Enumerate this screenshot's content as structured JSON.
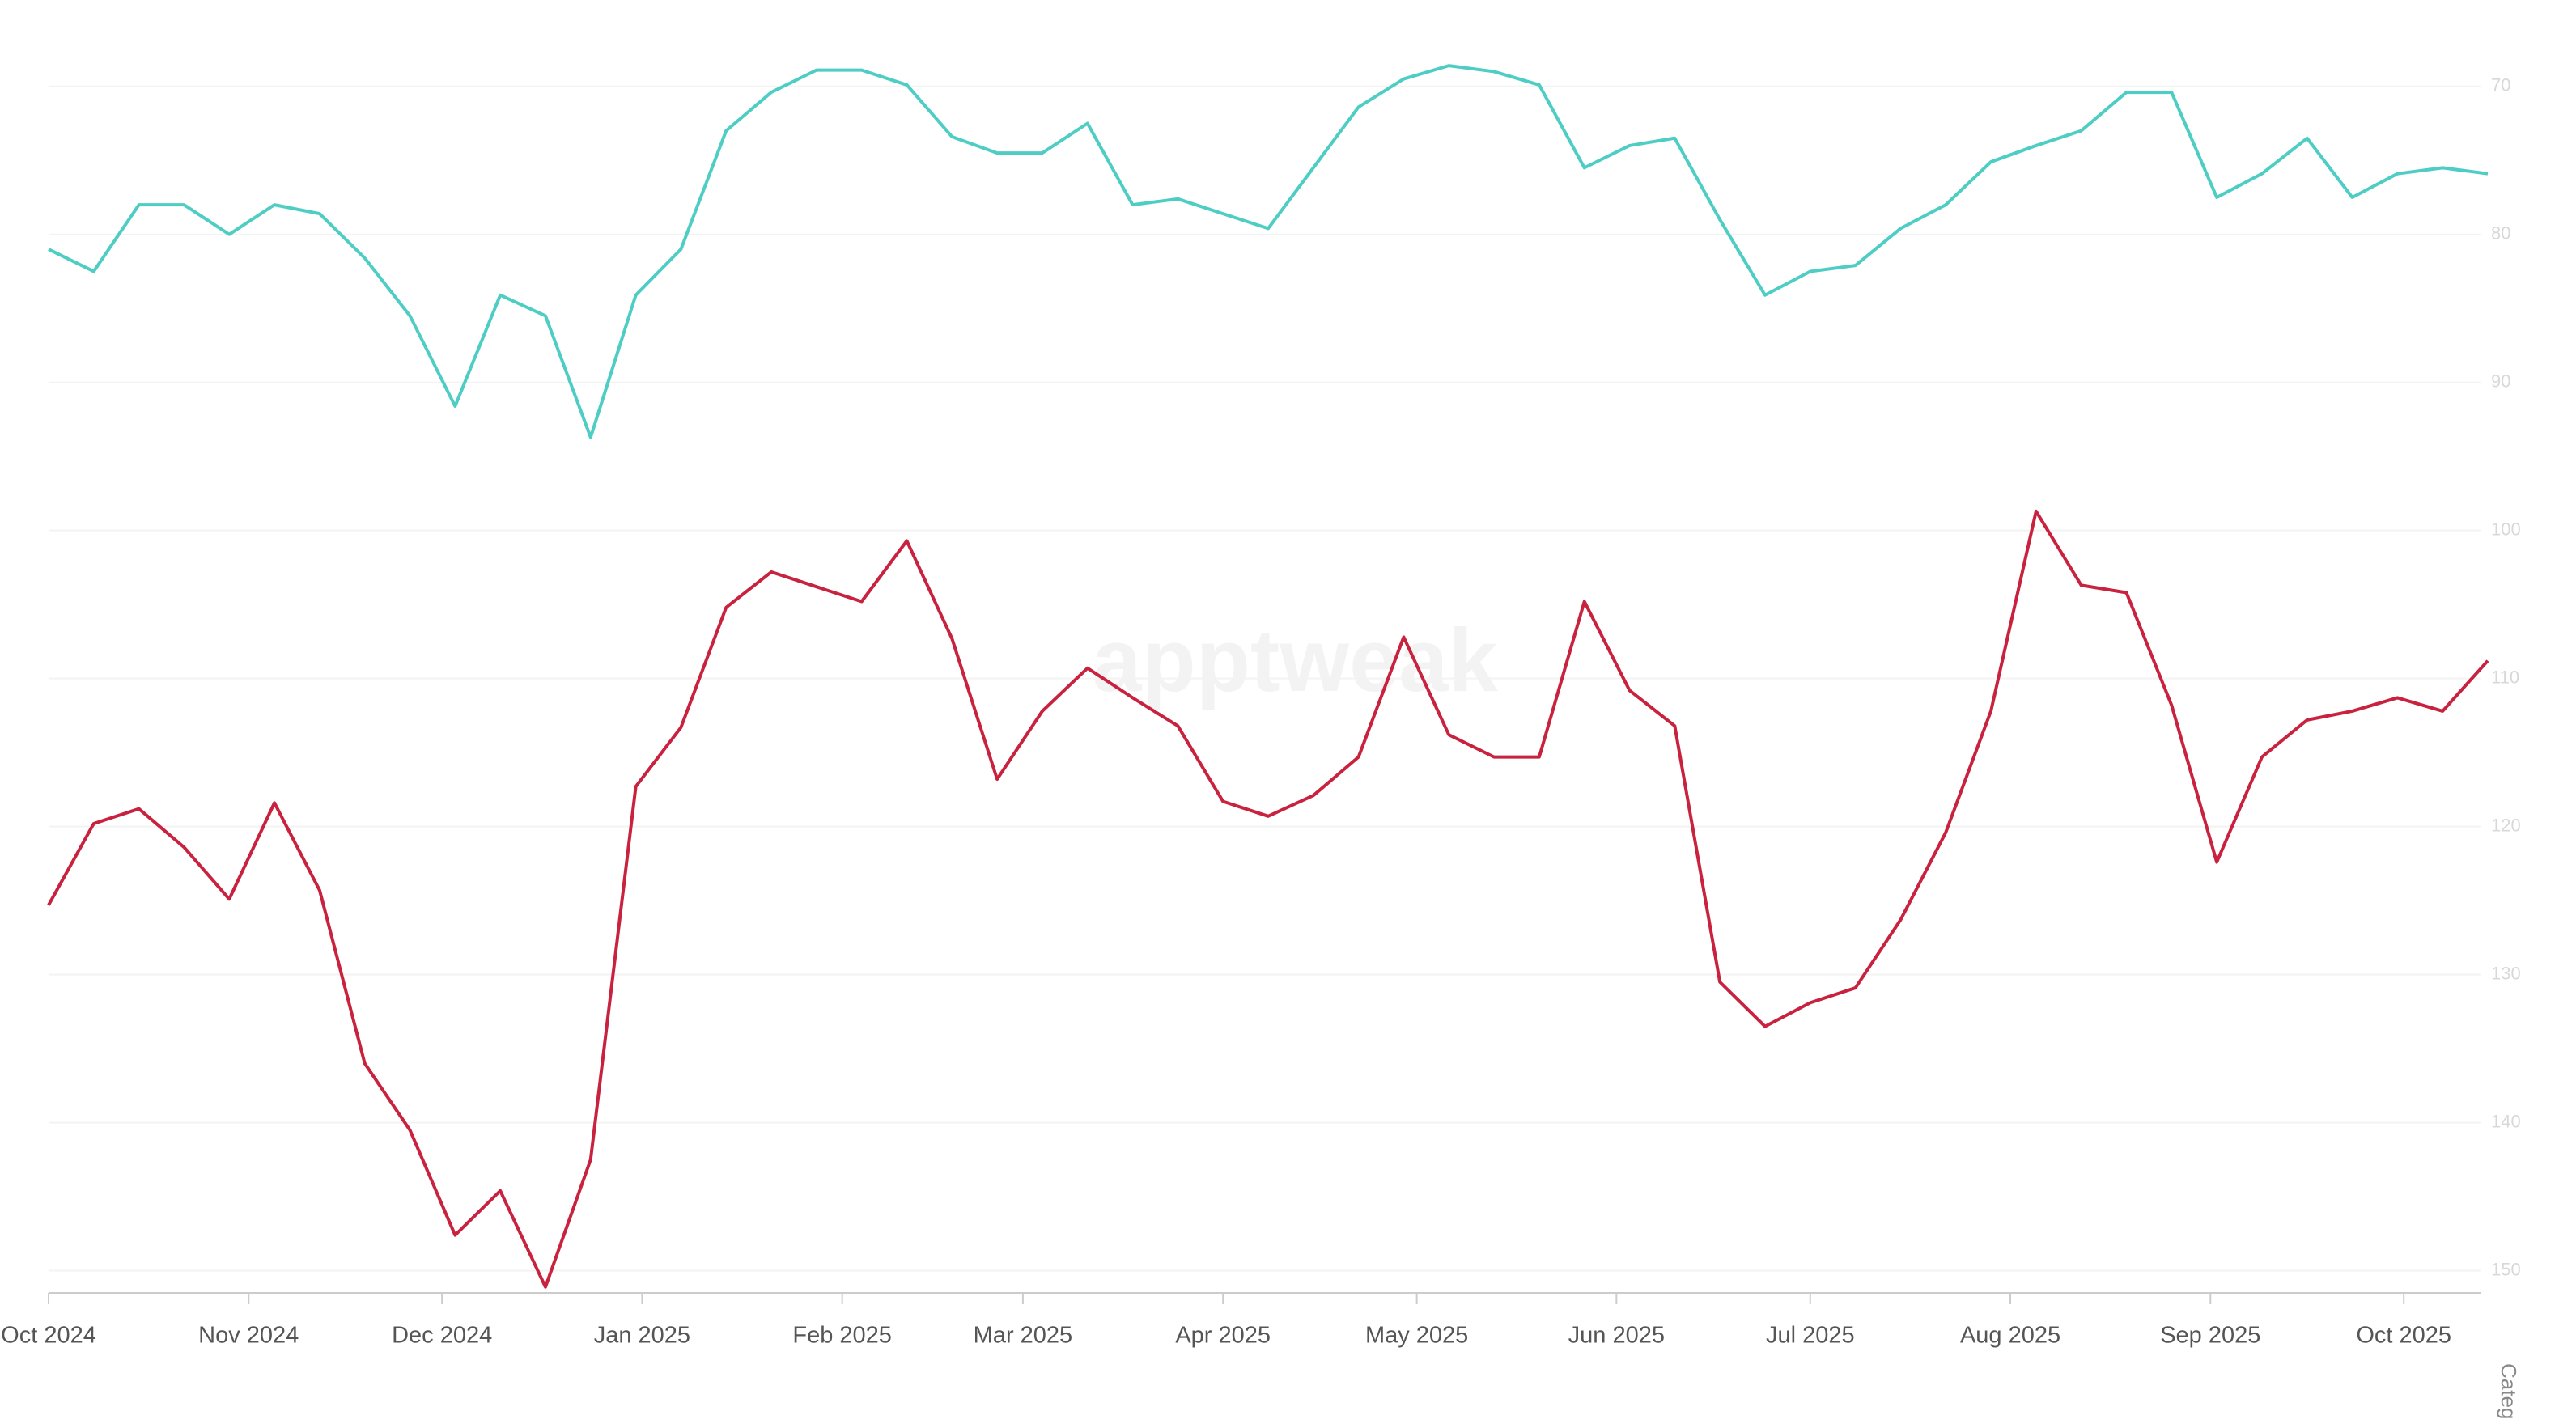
{
  "chart_data": {
    "type": "line",
    "watermark": "apptweak",
    "y_axis_label": "Categ",
    "x": [
      0,
      1,
      2,
      3,
      4,
      5,
      6,
      7,
      8,
      9,
      10,
      11,
      12,
      13,
      14,
      15,
      16,
      17,
      18,
      19,
      20,
      21,
      22,
      23,
      24,
      25,
      26,
      27,
      28,
      29,
      30,
      31,
      32,
      33,
      34,
      35,
      36,
      37,
      38,
      39,
      40,
      41,
      42,
      43,
      44,
      45,
      46,
      47,
      48,
      49,
      50,
      51,
      52,
      53,
      54
    ],
    "xlim": [
      0,
      54
    ],
    "xticks": [
      {
        "value": 0,
        "label": "Oct 2024"
      },
      {
        "value": 4.43,
        "label": "Nov 2024"
      },
      {
        "value": 8.71,
        "label": "Dec 2024"
      },
      {
        "value": 13.14,
        "label": "Jan 2025"
      },
      {
        "value": 17.57,
        "label": "Feb 2025"
      },
      {
        "value": 21.57,
        "label": "Mar 2025"
      },
      {
        "value": 26,
        "label": "Apr 2025"
      },
      {
        "value": 30.29,
        "label": "May 2025"
      },
      {
        "value": 34.71,
        "label": "Jun 2025"
      },
      {
        "value": 39,
        "label": "Jul 2025"
      },
      {
        "value": 43.43,
        "label": "Aug 2025"
      },
      {
        "value": 47.86,
        "label": "Sep 2025"
      },
      {
        "value": 52.14,
        "label": "Oct 2025"
      }
    ],
    "ylim": [
      151.5,
      67.5
    ],
    "yticks": [
      70,
      80,
      90,
      100,
      110,
      120,
      130,
      140,
      150
    ],
    "grid": true,
    "series": [
      {
        "color": "#4ecdc4",
        "values": [
          81.0,
          82.5,
          78.0,
          78.0,
          80.0,
          78.0,
          78.6,
          81.6,
          85.5,
          91.6,
          84.1,
          85.5,
          93.7,
          84.1,
          81.0,
          73.0,
          70.4,
          68.9,
          68.9,
          69.9,
          73.4,
          74.5,
          74.5,
          72.5,
          78.0,
          77.6,
          78.6,
          79.6,
          75.5,
          71.4,
          69.5,
          68.6,
          69.0,
          69.9,
          75.5,
          74.0,
          73.5,
          79.0,
          84.1,
          82.5,
          82.1,
          79.6,
          78.0,
          75.1,
          74.0,
          73.0,
          70.4,
          70.4,
          77.5,
          75.9,
          73.5,
          77.5,
          75.9,
          75.5,
          75.9
        ]
      },
      {
        "color": "#c8223f",
        "values": [
          125.3,
          119.8,
          118.8,
          121.4,
          124.9,
          118.4,
          124.3,
          136.0,
          140.5,
          147.6,
          144.6,
          151.1,
          142.5,
          117.3,
          113.3,
          105.2,
          102.8,
          103.8,
          104.8,
          100.7,
          107.3,
          116.8,
          112.2,
          109.3,
          111.3,
          113.2,
          118.3,
          119.3,
          117.9,
          115.3,
          107.2,
          113.8,
          115.3,
          115.3,
          104.8,
          110.8,
          113.2,
          130.5,
          133.5,
          131.9,
          130.9,
          126.3,
          120.4,
          112.2,
          98.7,
          103.7,
          104.2,
          111.8,
          122.4,
          115.3,
          112.8,
          112.2,
          111.3,
          112.2,
          108.8
        ]
      }
    ]
  }
}
